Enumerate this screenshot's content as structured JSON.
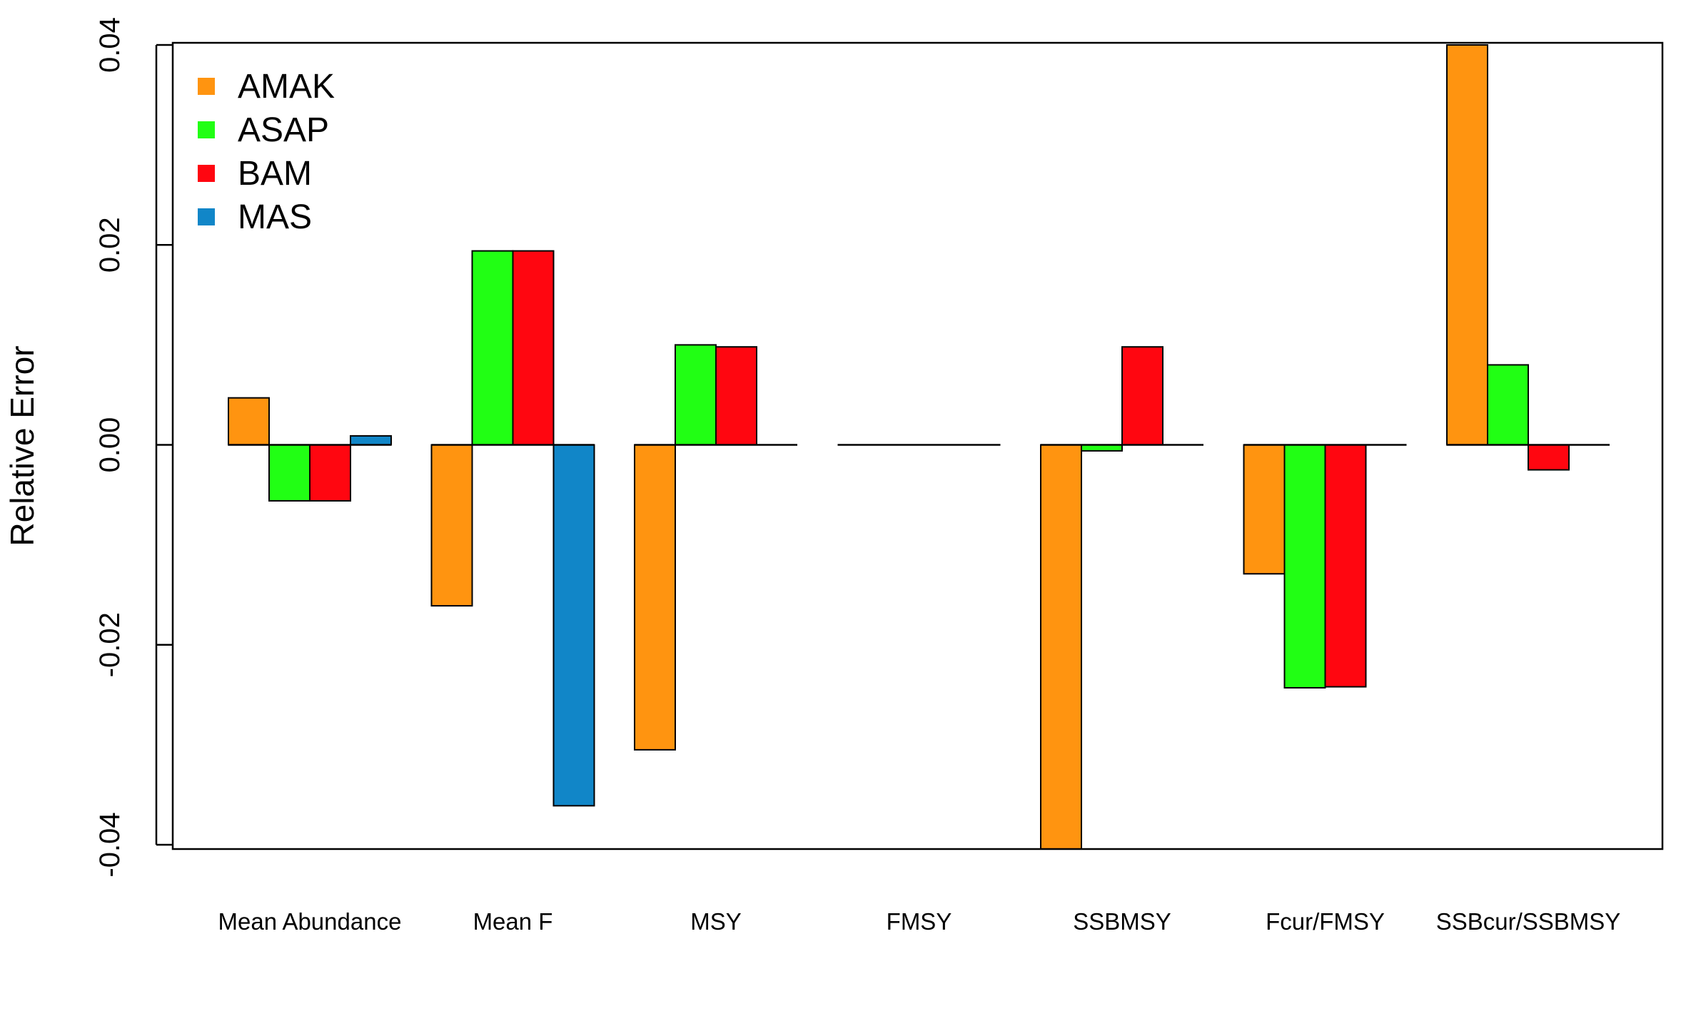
{
  "chart_data": {
    "type": "bar",
    "title": "",
    "xlabel": "",
    "ylabel": "Relative Error",
    "ylim": [
      -0.0405,
      0.04
    ],
    "yticks": [
      -0.04,
      -0.02,
      0.0,
      0.02,
      0.04
    ],
    "ytick_labels": [
      "-0.04",
      "-0.02",
      "0.00",
      "0.02",
      "0.04"
    ],
    "grid": false,
    "legend_position": "top-left",
    "categories": [
      "Mean Abundance",
      "Mean F",
      "MSY",
      "FMSY",
      "SSBMSY",
      "Fcur/FMSY",
      "SSBcur/SSBMSY"
    ],
    "series": [
      {
        "name": "AMAK",
        "color": "#FF9410",
        "values": [
          0.0047,
          -0.0161,
          -0.0305,
          0.0,
          -0.0405,
          -0.0129,
          0.04
        ]
      },
      {
        "name": "ASAP",
        "color": "#21FF14",
        "values": [
          -0.0056,
          0.0194,
          0.01,
          0.0,
          -0.0006,
          -0.0243,
          0.008
        ]
      },
      {
        "name": "BAM",
        "color": "#FF0610",
        "values": [
          -0.0056,
          0.0194,
          0.0098,
          0.0,
          0.0098,
          -0.0242,
          -0.0025
        ]
      },
      {
        "name": "MAS",
        "color": "#1186C8",
        "values": [
          0.0009,
          -0.0361,
          null,
          null,
          null,
          null,
          null
        ]
      }
    ]
  }
}
